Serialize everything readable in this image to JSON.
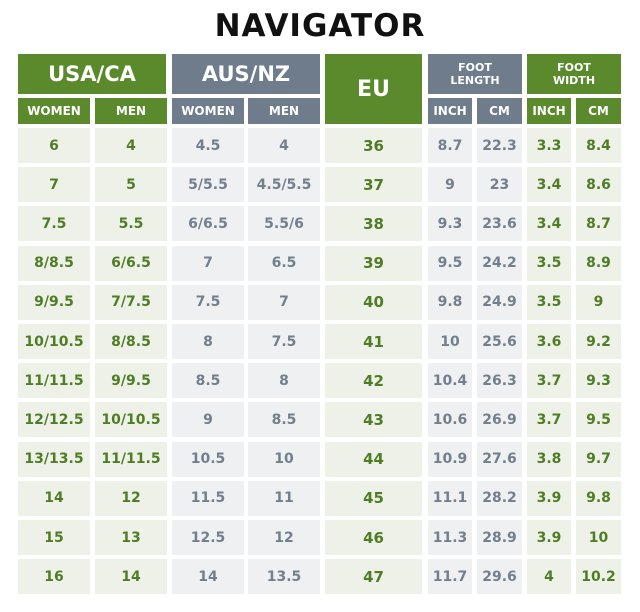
{
  "title": "NAVIGATOR",
  "headers": {
    "usa_ca": "USA/CA",
    "aus_nz": "AUS/NZ",
    "eu": "EU",
    "foot_length": "FOOT LENGTH",
    "foot_width": "FOOT WIDTH",
    "women": "WOMEN",
    "men": "MEN",
    "inch": "INCH",
    "cm": "CM"
  },
  "colors": {
    "green_header": "#5a8a2c",
    "slate_header": "#6e7c8c",
    "green_text": "#4f7d25",
    "slate_text": "#737f8c",
    "green_cell_bg": "#eef1e8",
    "slate_cell_bg": "#eef0f2"
  },
  "rows": [
    [
      "6",
      "4",
      "4.5",
      "4",
      "36",
      "8.7",
      "22.3",
      "3.3",
      "8.4"
    ],
    [
      "7",
      "5",
      "5/5.5",
      "4.5/5.5",
      "37",
      "9",
      "23",
      "3.4",
      "8.6"
    ],
    [
      "7.5",
      "5.5",
      "6/6.5",
      "5.5/6",
      "38",
      "9.3",
      "23.6",
      "3.4",
      "8.7"
    ],
    [
      "8/8.5",
      "6/6.5",
      "7",
      "6.5",
      "39",
      "9.5",
      "24.2",
      "3.5",
      "8.9"
    ],
    [
      "9/9.5",
      "7/7.5",
      "7.5",
      "7",
      "40",
      "9.8",
      "24.9",
      "3.5",
      "9"
    ],
    [
      "10/10.5",
      "8/8.5",
      "8",
      "7.5",
      "41",
      "10",
      "25.6",
      "3.6",
      "9.2"
    ],
    [
      "11/11.5",
      "9/9.5",
      "8.5",
      "8",
      "42",
      "10.4",
      "26.3",
      "3.7",
      "9.3"
    ],
    [
      "12/12.5",
      "10/10.5",
      "9",
      "8.5",
      "43",
      "10.6",
      "26.9",
      "3.7",
      "9.5"
    ],
    [
      "13/13.5",
      "11/11.5",
      "10.5",
      "10",
      "44",
      "10.9",
      "27.6",
      "3.8",
      "9.7"
    ],
    [
      "14",
      "12",
      "11.5",
      "11",
      "45",
      "11.1",
      "28.2",
      "3.9",
      "9.8"
    ],
    [
      "15",
      "13",
      "12.5",
      "12",
      "46",
      "11.3",
      "28.9",
      "3.9",
      "10"
    ],
    [
      "16",
      "14",
      "14",
      "13.5",
      "47",
      "11.7",
      "29.6",
      "4",
      "10.2"
    ]
  ]
}
